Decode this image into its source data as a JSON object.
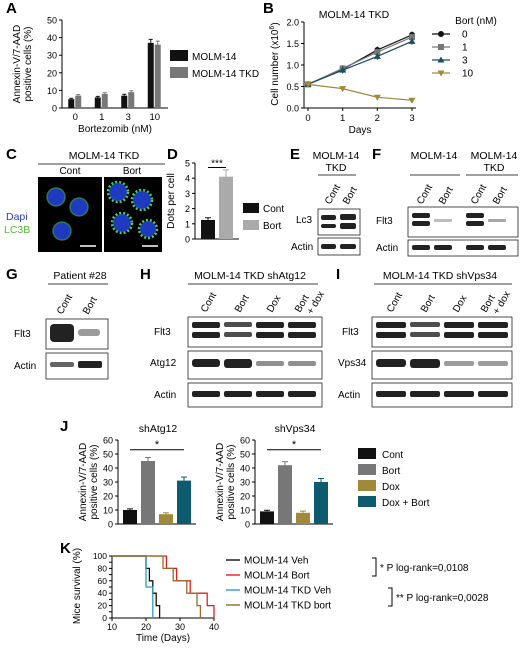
{
  "panels": {
    "A": {
      "letter": "A"
    },
    "B": {
      "letter": "B"
    },
    "C": {
      "letter": "C"
    },
    "D": {
      "letter": "D"
    },
    "E": {
      "letter": "E"
    },
    "F": {
      "letter": "F"
    },
    "G": {
      "letter": "G"
    },
    "H": {
      "letter": "H"
    },
    "I": {
      "letter": "I"
    },
    "J": {
      "letter": "J"
    },
    "K": {
      "letter": "K"
    }
  },
  "colors": {
    "black": "#111111",
    "gray": "#777777",
    "lightgray": "#aaaaaa",
    "teal": "#1a4e62",
    "olive": "#a08a3a",
    "darkteal": "#0e5a6e",
    "red": "#e02020",
    "cyan": "#2a9fc0",
    "brown": "#9a6a2a"
  },
  "chart_data": [
    {
      "id": "A",
      "type": "bar",
      "ylabel_lines": [
        "Annexin-V/7-AAD",
        "positive cells (%)"
      ],
      "xlabel": "Bortezomib (nM)",
      "categories": [
        "0",
        "1",
        "3",
        "10"
      ],
      "ylim": [
        0,
        50
      ],
      "yticks": [
        "0",
        "10",
        "20",
        "30",
        "40",
        "50"
      ],
      "series": [
        {
          "name": "MOLM-14",
          "values": [
            5,
            6,
            7,
            37
          ],
          "errors": [
            0.5,
            0.6,
            0.8,
            2
          ]
        },
        {
          "name": "MOLM-14 TKD",
          "values": [
            7,
            8,
            9,
            36
          ],
          "errors": [
            0.6,
            0.7,
            0.8,
            2
          ]
        }
      ]
    },
    {
      "id": "B",
      "type": "line",
      "title": "MOLM-14 TKD",
      "ylabel": "Cell number (x10",
      "ylabel_sup": "6",
      "ylabel_end": ")",
      "xlabel": "Days",
      "x": [
        0,
        1,
        2,
        3
      ],
      "ylim": [
        0,
        2.0
      ],
      "yticks": [
        "0.0",
        "0.5",
        "1.0",
        "1.5",
        "2.0"
      ],
      "xticks": [
        "0",
        "1",
        "2",
        "3"
      ],
      "legend_title": "Bort (nM)",
      "series": [
        {
          "name": "0",
          "values": [
            0.55,
            0.9,
            1.35,
            1.7
          ]
        },
        {
          "name": "1",
          "values": [
            0.55,
            0.92,
            1.3,
            1.65
          ]
        },
        {
          "name": "3",
          "values": [
            0.55,
            0.88,
            1.2,
            1.55
          ]
        },
        {
          "name": "10",
          "values": [
            0.55,
            0.45,
            0.25,
            0.18
          ]
        }
      ]
    },
    {
      "id": "D",
      "type": "bar",
      "ylabel": "Dots per cell",
      "categories": [
        "Cont",
        "Bort"
      ],
      "ylim": [
        0,
        5
      ],
      "yticks": [
        "0",
        "1",
        "2",
        "3",
        "4",
        "5"
      ],
      "values": [
        1.25,
        4.1
      ],
      "errors": [
        0.15,
        0.45
      ],
      "significance": "***"
    },
    {
      "id": "J1",
      "type": "bar",
      "title": "shAtg12",
      "ylabel_lines": [
        "Annexin-V/7-AAD",
        "positive cells (%)"
      ],
      "categories": [
        "Cont",
        "Bort",
        "Dox",
        "Dox + Bort"
      ],
      "ylim": [
        0,
        60
      ],
      "yticks": [
        "0",
        "10",
        "20",
        "30",
        "40",
        "50",
        "60"
      ],
      "values": [
        10,
        45,
        7,
        31
      ],
      "errors": [
        0.8,
        2.5,
        1,
        2.5
      ],
      "significance": "*"
    },
    {
      "id": "J2",
      "type": "bar",
      "title": "shVps34",
      "ylabel_lines": [
        "Annexin-V/7-AAD",
        "positive cells (%)"
      ],
      "categories": [
        "Cont",
        "Bort",
        "Dox",
        "Dox + Bort"
      ],
      "ylim": [
        0,
        60
      ],
      "yticks": [
        "0",
        "10",
        "20",
        "30",
        "40",
        "50",
        "60"
      ],
      "values": [
        9,
        42,
        8,
        30
      ],
      "errors": [
        0.8,
        2.5,
        1.2,
        2.5
      ],
      "significance": "*"
    },
    {
      "id": "K",
      "type": "line",
      "ylabel": "Mice survival (%)",
      "xlabel": "Time (Days)",
      "xlim": [
        10,
        40
      ],
      "ylim": [
        0,
        100
      ],
      "xticks": [
        "10",
        "20",
        "30",
        "40"
      ],
      "yticks": [
        "0",
        "10",
        "20",
        "30",
        "40",
        "50",
        "60",
        "70",
        "80",
        "90",
        "100"
      ],
      "series": [
        {
          "name": "MOLM-14 Veh",
          "steps": [
            [
              10,
              100
            ],
            [
              20,
              100
            ],
            [
              20,
              80
            ],
            [
              21,
              80
            ],
            [
              21,
              60
            ],
            [
              22,
              60
            ],
            [
              22,
              40
            ],
            [
              23,
              40
            ],
            [
              23,
              20
            ],
            [
              24,
              20
            ],
            [
              24,
              0
            ]
          ]
        },
        {
          "name": "MOLM-14 Bort",
          "steps": [
            [
              10,
              100
            ],
            [
              26,
              100
            ],
            [
              26,
              80
            ],
            [
              29,
              80
            ],
            [
              29,
              60
            ],
            [
              33,
              60
            ],
            [
              33,
              40
            ],
            [
              38,
              40
            ],
            [
              38,
              20
            ],
            [
              40,
              20
            ],
            [
              40,
              0
            ]
          ]
        },
        {
          "name": "MOLM-14 TKD Veh",
          "steps": [
            [
              10,
              100
            ],
            [
              20,
              100
            ],
            [
              20,
              50
            ],
            [
              22,
              50
            ],
            [
              22,
              0
            ]
          ]
        },
        {
          "name": "MOLM-14 TKD bort",
          "steps": [
            [
              10,
              100
            ],
            [
              25,
              100
            ],
            [
              25,
              80
            ],
            [
              28,
              80
            ],
            [
              28,
              60
            ],
            [
              32,
              60
            ],
            [
              32,
              40
            ],
            [
              35,
              40
            ],
            [
              35,
              20
            ],
            [
              36,
              20
            ],
            [
              36,
              0
            ]
          ]
        }
      ],
      "annotations": [
        "* P log-rank=0,0108",
        "** P log-rank=0,0028"
      ]
    }
  ],
  "C": {
    "title": "MOLM-14 TKD",
    "cols": [
      "Cont",
      "Bort"
    ],
    "stain1": "Dapi",
    "stain2": "LC3B"
  },
  "E": {
    "title_lines": [
      "MOLM-14",
      "TKD"
    ],
    "lanes": [
      "Cont",
      "Bort"
    ],
    "rows": [
      "Lc3",
      "Actin"
    ]
  },
  "F": {
    "groups": [
      "MOLM-14",
      "MOLM-14"
    ],
    "group2_sub": "TKD",
    "lanes": [
      "Cont",
      "Bort",
      "Cont",
      "Bort"
    ],
    "rows": [
      "Flt3",
      "Actin"
    ]
  },
  "G": {
    "title": "Patient #28",
    "lanes": [
      "Cont",
      "Bort"
    ],
    "rows": [
      "Flt3",
      "Actin"
    ]
  },
  "H": {
    "title": "MOLM-14 TKD shAtg12",
    "lanes": [
      "Cont",
      "Bort",
      "Dox",
      "Bort",
      "+ dox"
    ],
    "rows": [
      "Flt3",
      "Atg12",
      "Actin"
    ]
  },
  "I": {
    "title": "MOLM-14 TKD shVps34",
    "lanes": [
      "Cont",
      "Bort",
      "Dox",
      "Bort",
      "+ dox"
    ],
    "rows": [
      "Flt3",
      "Vps34",
      "Actin"
    ]
  }
}
